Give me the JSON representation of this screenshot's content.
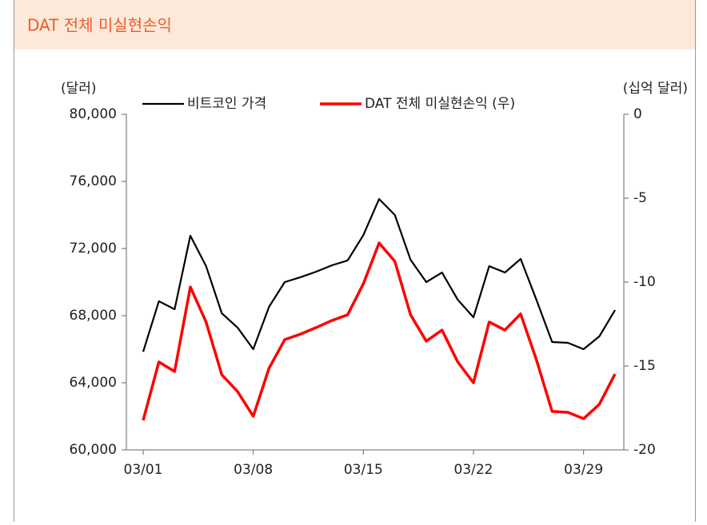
{
  "chart_data": {
    "type": "line",
    "title": "DAT 전체 미실현손익",
    "y_label": "(달러)",
    "y2_label": "(십억 달러)",
    "categories": [
      "03/01",
      null,
      null,
      null,
      null,
      null,
      null,
      "03/08",
      null,
      null,
      null,
      null,
      null,
      null,
      "03/15",
      null,
      null,
      null,
      null,
      null,
      null,
      "03/22",
      null,
      null,
      null,
      null,
      null,
      null,
      "03/29",
      null,
      null
    ],
    "series": [
      {
        "name": "비트코인 가격",
        "color": "#000000",
        "axis": "y",
        "values": [
          65850,
          68860,
          68380,
          72760,
          70950,
          68140,
          67290,
          66000,
          68520,
          70000,
          70290,
          70620,
          71000,
          71290,
          72800,
          74950,
          74000,
          71330,
          70000,
          70570,
          68950,
          67900,
          70950,
          70570,
          71380,
          68950,
          66430,
          66380,
          66000,
          66760,
          68330
        ]
      },
      {
        "name": "DAT 전체 미실현손익 (우)",
        "color": "#ff0000",
        "axis": "y2",
        "values": [
          -18.24,
          -14.76,
          -15.33,
          -10.29,
          -12.38,
          -15.52,
          -16.52,
          -18.0,
          -15.14,
          -13.43,
          -13.1,
          -12.71,
          -12.29,
          -11.95,
          -10.1,
          -7.67,
          -8.76,
          -11.95,
          -13.52,
          -12.86,
          -14.76,
          -16.0,
          -12.38,
          -12.86,
          -11.9,
          -14.62,
          -17.71,
          -17.76,
          -18.14,
          -17.29,
          -15.48
        ]
      }
    ],
    "ylim": [
      60000,
      80000
    ],
    "yticks": [
      {
        "value": 60000,
        "label": "60,000"
      },
      {
        "value": 64000,
        "label": "64,000"
      },
      {
        "value": 68000,
        "label": "68,000"
      },
      {
        "value": 72000,
        "label": "72,000"
      },
      {
        "value": 76000,
        "label": "76,000"
      },
      {
        "value": 80000,
        "label": "80,000"
      }
    ],
    "y2lim": [
      -20,
      0
    ],
    "y2ticks": [
      -20,
      -15,
      -10,
      -5,
      0
    ]
  }
}
